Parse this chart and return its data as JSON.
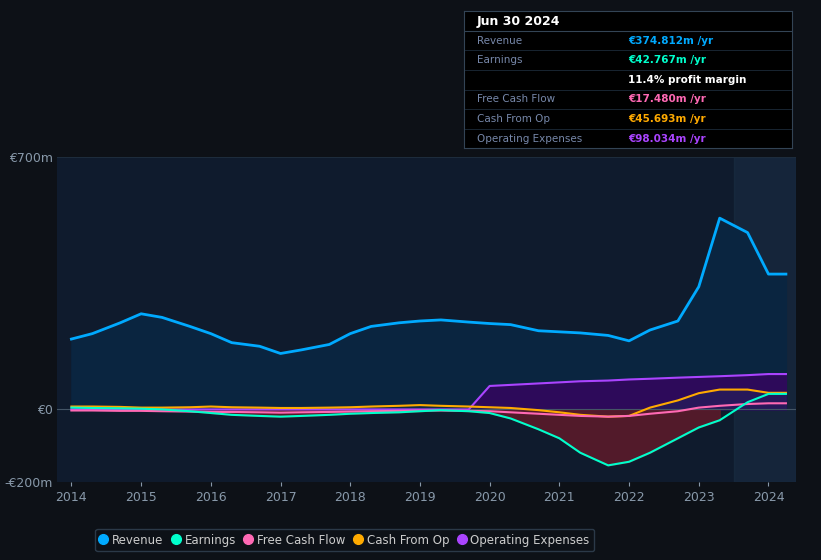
{
  "bg_color": "#0d1117",
  "plot_bg_color": "#0f1b2d",
  "grid_color": "#1e2d3d",
  "ylabel_color": "#8899aa",
  "axis_label_color": "#8899aa",
  "years": [
    2014.0,
    2014.3,
    2014.7,
    2015.0,
    2015.3,
    2015.7,
    2016.0,
    2016.3,
    2016.7,
    2017.0,
    2017.3,
    2017.7,
    2018.0,
    2018.3,
    2018.7,
    2019.0,
    2019.3,
    2019.7,
    2020.0,
    2020.3,
    2020.7,
    2021.0,
    2021.3,
    2021.7,
    2022.0,
    2022.3,
    2022.7,
    2023.0,
    2023.3,
    2023.7,
    2024.0,
    2024.25
  ],
  "revenue": [
    195,
    210,
    240,
    265,
    255,
    230,
    210,
    185,
    175,
    155,
    165,
    180,
    210,
    230,
    240,
    245,
    248,
    242,
    238,
    235,
    218,
    215,
    212,
    205,
    190,
    220,
    245,
    340,
    530,
    490,
    375,
    375
  ],
  "earnings": [
    5,
    4,
    3,
    2,
    0,
    -5,
    -10,
    -15,
    -18,
    -20,
    -18,
    -15,
    -12,
    -10,
    -8,
    -5,
    -2,
    -5,
    -10,
    -25,
    -55,
    -80,
    -120,
    -155,
    -145,
    -120,
    -80,
    -50,
    -30,
    20,
    43,
    43
  ],
  "free_cash_flow": [
    -3,
    -3,
    -4,
    -4,
    -5,
    -6,
    -7,
    -7,
    -8,
    -9,
    -8,
    -7,
    -6,
    -5,
    -4,
    -3,
    -3,
    -4,
    -5,
    -8,
    -12,
    -15,
    -18,
    -20,
    -18,
    -12,
    -5,
    5,
    10,
    15,
    17,
    17
  ],
  "cash_from_op": [
    8,
    8,
    7,
    5,
    5,
    6,
    8,
    6,
    5,
    4,
    4,
    5,
    6,
    8,
    10,
    12,
    10,
    8,
    6,
    4,
    -2,
    -8,
    -15,
    -20,
    -18,
    5,
    25,
    45,
    55,
    55,
    46,
    46
  ],
  "operating_expenses": [
    0,
    0,
    0,
    0,
    0,
    0,
    0,
    0,
    0,
    0,
    0,
    0,
    0,
    0,
    0,
    0,
    0,
    0,
    65,
    68,
    72,
    75,
    78,
    80,
    83,
    85,
    88,
    90,
    92,
    95,
    98,
    98
  ],
  "revenue_color": "#00aaff",
  "earnings_color": "#00ffcc",
  "fcf_color": "#ff69b4",
  "cashop_color": "#ffaa00",
  "opex_color": "#aa44ff",
  "revenue_fill_color": "#0a2540",
  "earnings_fill_neg_color": "#5a1a2a",
  "opex_fill_color": "#2d0a5a",
  "cashop_fill_color": "#1a3a5a",
  "ylim": [
    -200,
    700
  ],
  "yticks": [
    -200,
    0,
    700
  ],
  "ytick_labels": [
    "-€200m",
    "€0",
    "€700m"
  ],
  "xtick_years": [
    2014,
    2015,
    2016,
    2017,
    2018,
    2019,
    2020,
    2021,
    2022,
    2023,
    2024
  ],
  "infobox_title": "Jun 30 2024",
  "infobox_revenue_label": "Revenue",
  "infobox_revenue_val": "€374.812m /yr",
  "infobox_earnings_label": "Earnings",
  "infobox_earnings_val": "€42.767m /yr",
  "infobox_margin": "11.4% profit margin",
  "infobox_fcf_label": "Free Cash Flow",
  "infobox_fcf_val": "€17.480m /yr",
  "infobox_cashop_label": "Cash From Op",
  "infobox_cashop_val": "€45.693m /yr",
  "infobox_opex_label": "Operating Expenses",
  "infobox_opex_val": "€98.034m /yr",
  "legend_items": [
    "Revenue",
    "Earnings",
    "Free Cash Flow",
    "Cash From Op",
    "Operating Expenses"
  ],
  "legend_colors": [
    "#00aaff",
    "#00ffcc",
    "#ff69b4",
    "#ffaa00",
    "#aa44ff"
  ],
  "highlight_x_start": 2023.5,
  "xmax": 2024.4
}
